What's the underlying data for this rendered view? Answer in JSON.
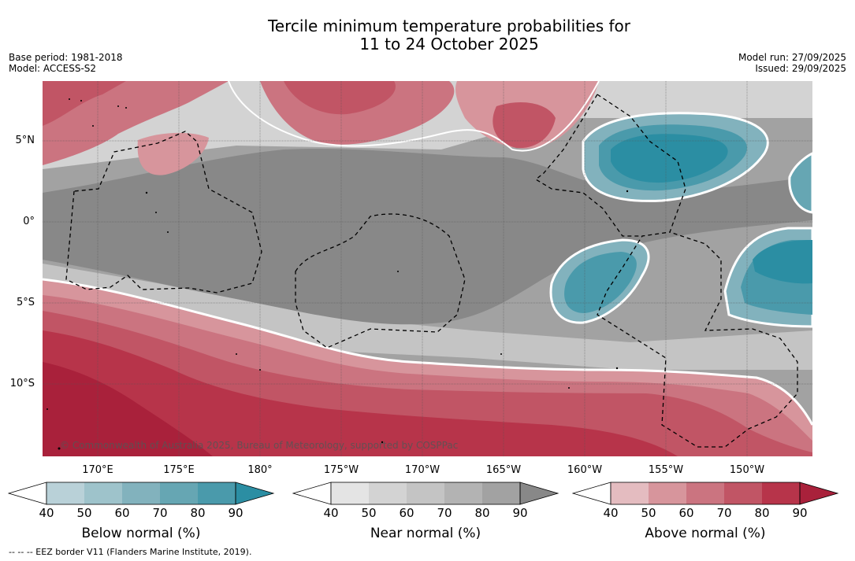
{
  "title": {
    "line1": "Tercile minimum temperature probabilities for",
    "line2": "11 to 24 October 2025"
  },
  "meta": {
    "base_period": "Base period: 1981-2018",
    "model": "Model: ACCESS-S2",
    "model_run": "Model run: 27/09/2025",
    "issued": "Issued: 29/09/2025"
  },
  "map": {
    "lat_labels": [
      "5°N",
      "0°",
      "5°S",
      "10°S"
    ],
    "lon_labels": [
      "170°E",
      "175°E",
      "180°",
      "175°W",
      "170°W",
      "165°W",
      "160°W",
      "155°W",
      "150°W"
    ],
    "copyright": "© Commonwealth of Australia 2025, Bureau of Meteorology, supported by COSPPac",
    "colors": {
      "below": [
        "#b9d1d8",
        "#9ec3cb",
        "#82b2bd",
        "#66a6b3",
        "#4a9aab",
        "#2b8ea3"
      ],
      "near": [
        "#e4e4e4",
        "#d3d3d3",
        "#c4c4c4",
        "#b3b3b3",
        "#a2a2a2",
        "#888888"
      ],
      "above": [
        "#e4bcc0",
        "#d7959c",
        "#cb7480",
        "#c15565",
        "#b7344a",
        "#a9213b"
      ]
    }
  },
  "colorbars": [
    {
      "label": "Below normal (%)",
      "ticks": [
        "40",
        "50",
        "60",
        "70",
        "80",
        "90"
      ]
    },
    {
      "label": "Near normal (%)",
      "ticks": [
        "40",
        "50",
        "60",
        "70",
        "80",
        "90"
      ]
    },
    {
      "label": "Above normal (%)",
      "ticks": [
        "40",
        "50",
        "60",
        "70",
        "80",
        "90"
      ]
    }
  ],
  "footer": "--  --  -- EEZ border V11 (Flanders Marine Institute, 2019)."
}
